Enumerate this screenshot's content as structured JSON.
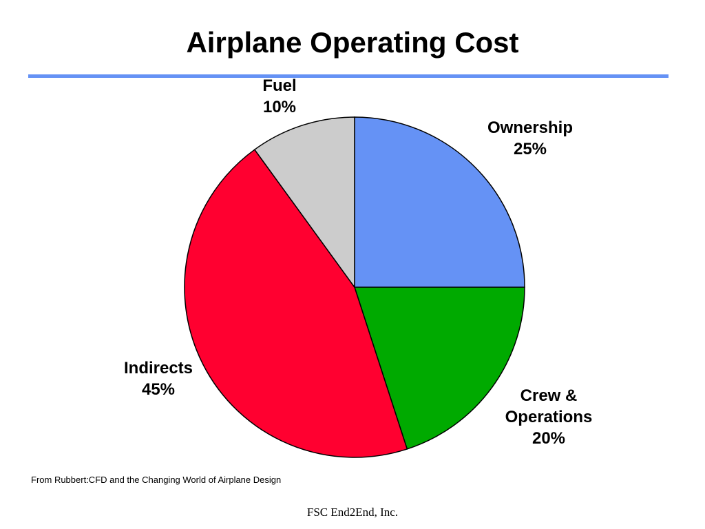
{
  "slide": {
    "title": "Airplane Operating Cost",
    "source_note": "From Rubbert:CFD and the Changing World of Airplane Design",
    "footer": "FSC End2End, Inc.",
    "rule_color": "#6592F5"
  },
  "chart_data": {
    "type": "pie",
    "title": "",
    "slices": [
      {
        "label": [
          "Ownership",
          "25%"
        ],
        "value": 25,
        "color": "#6592F5"
      },
      {
        "label": [
          "Crew &",
          "Operations",
          "20%"
        ],
        "value": 20,
        "color": "#00AA00"
      },
      {
        "label": [
          "Indirects",
          "45%"
        ],
        "value": 45,
        "color": "#FF0030"
      },
      {
        "label": [
          "Fuel",
          "10%"
        ],
        "value": 10,
        "color": "#CCCCCC"
      }
    ],
    "start_angle": "12 o'clock",
    "direction": "clockwise"
  }
}
